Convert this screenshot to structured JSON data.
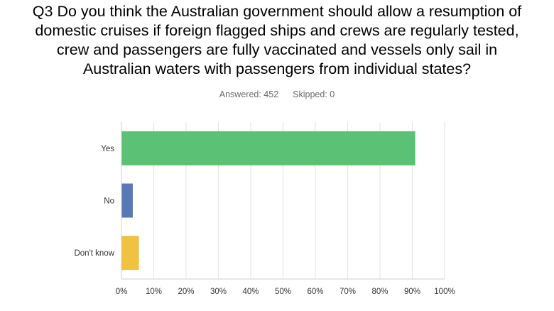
{
  "question": {
    "lines": [
      "Q3 Do you think the Australian government should allow a resumption of",
      "domestic cruises if foreign flagged ships and crews are regularly tested,",
      "crew and passengers are fully vaccinated and vessels only sail in",
      "Australian waters with passengers from individual states?"
    ]
  },
  "stats": {
    "answered": "Answered: 452",
    "skipped": "Skipped: 0"
  },
  "chart_data": {
    "type": "bar",
    "orientation": "horizontal",
    "categories": [
      "Yes",
      "No",
      "Don't know"
    ],
    "values": [
      90.9,
      3.5,
      5.4
    ],
    "colors": [
      "#5bc174",
      "#5878b6",
      "#f1c142"
    ],
    "xlim": [
      0,
      100
    ],
    "x_ticks": [
      "0%",
      "10%",
      "20%",
      "30%",
      "40%",
      "50%",
      "60%",
      "70%",
      "80%",
      "90%",
      "100%"
    ],
    "grid": "vertical",
    "title": "",
    "xlabel": "",
    "ylabel": ""
  }
}
